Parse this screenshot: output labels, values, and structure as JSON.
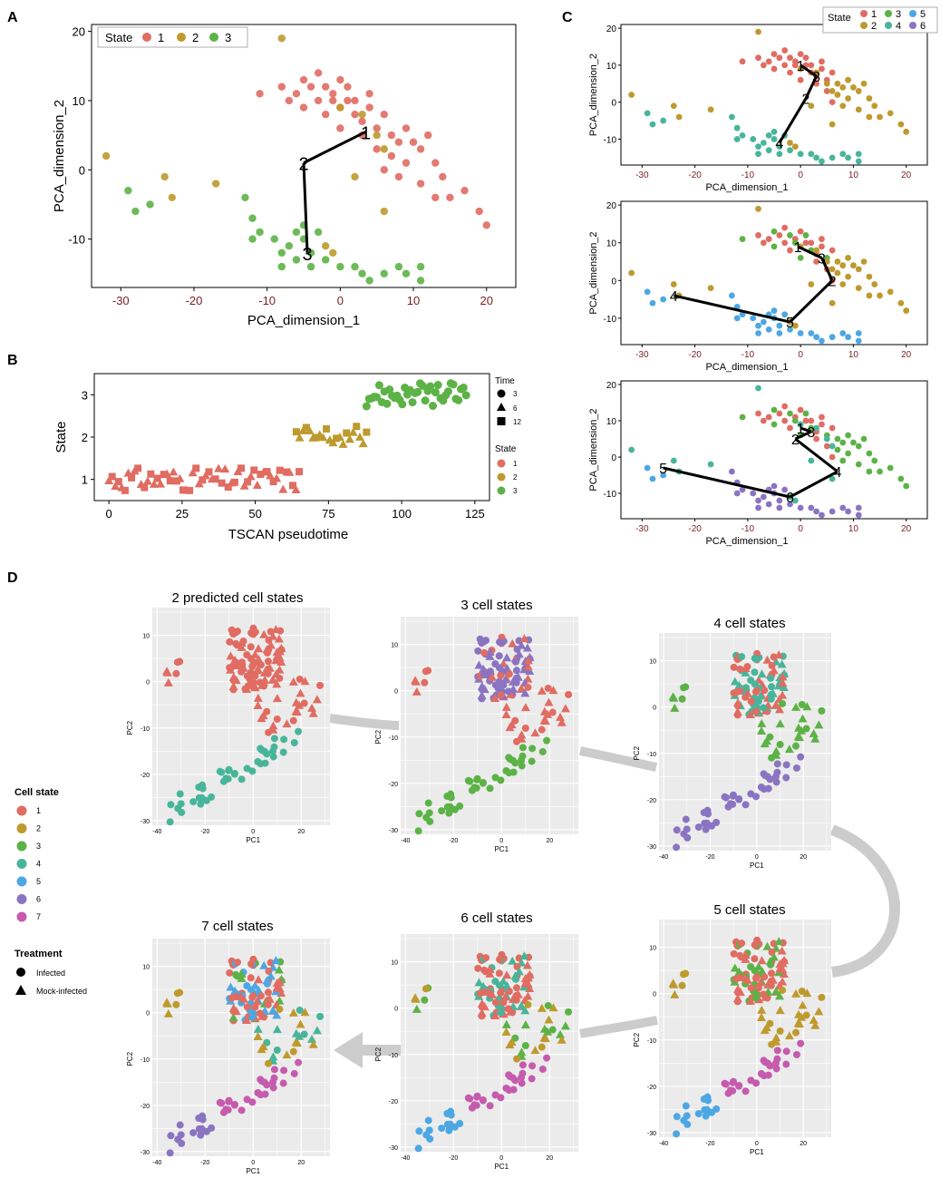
{
  "colors": {
    "s1": "#E06C62",
    "s2": "#BE9A2E",
    "s3": "#5CB246",
    "s4": "#48B59A",
    "s5": "#4CA7E3",
    "s6": "#8A74C2",
    "s7": "#C65BAE",
    "axis_tick": "#7a1f1f",
    "panel_bg": "#ebebeb",
    "arrow": "#cccccc"
  },
  "panels": {
    "A": {
      "letter": "A",
      "xlabel": "PCA_dimension_1",
      "ylabel": "PCA_dimension_2",
      "xticks": [
        "-30",
        "-20",
        "-10",
        "0",
        "10",
        "20"
      ],
      "yticks": [
        "20",
        "10",
        "0",
        "-10"
      ],
      "legend_title": "State",
      "legend_items": [
        "1",
        "2",
        "3"
      ]
    },
    "B": {
      "letter": "B",
      "xlabel": "TSCAN pseudotime",
      "ylabel": "State",
      "xticks": [
        "0",
        "25",
        "50",
        "75",
        "100",
        "125"
      ],
      "yticks": [
        "3",
        "2",
        "1"
      ],
      "time_title": "Time",
      "time_items": [
        "3",
        "6",
        "12"
      ],
      "state_title": "State",
      "state_items": [
        "1",
        "2",
        "3"
      ]
    },
    "C": {
      "letter": "C",
      "xlabel": "PCA_dimension_1",
      "ylabel": "PCA_dimension_2",
      "xticks": [
        "-30",
        "-20",
        "-10",
        "0",
        "10",
        "20"
      ],
      "yticks": [
        "20",
        "10",
        "0",
        "-10"
      ],
      "legend_title": "State",
      "legend_items": [
        "1",
        "2",
        "3",
        "4",
        "5",
        "6"
      ]
    },
    "D": {
      "letter": "D",
      "legend_title": "Cell state",
      "legend_items": [
        "1",
        "2",
        "3",
        "4",
        "5",
        "6",
        "7"
      ],
      "treatment_title": "Treatment",
      "treatment_items": [
        "Infected",
        "Mock-infected"
      ],
      "xlabel": "PC1",
      "ylabel": "PC2",
      "xticks": [
        "-40",
        "-20",
        "0",
        "20"
      ],
      "yticks": [
        "10",
        "0",
        "-10",
        "-20",
        "-30"
      ],
      "subplots": [
        {
          "title": "2 predicted cell states",
          "k": 2
        },
        {
          "title": "3 cell states",
          "k": 3
        },
        {
          "title": "4 cell states",
          "k": 4
        },
        {
          "title": "5 cell states",
          "k": 5
        },
        {
          "title": "6 cell states",
          "k": 6
        },
        {
          "title": "7 cell states",
          "k": 7
        }
      ]
    }
  },
  "chart_data": [
    {
      "panel": "A",
      "type": "scatter",
      "xlim": [
        -34,
        24
      ],
      "ylim": [
        -17,
        21
      ],
      "series": [
        {
          "name": "1",
          "points": [
            [
              -11,
              11
            ],
            [
              -8,
              12
            ],
            [
              -6,
              11
            ],
            [
              -5,
              13
            ],
            [
              -4,
              12
            ],
            [
              -3,
              14
            ],
            [
              -2,
              12
            ],
            [
              -1,
              11
            ],
            [
              0,
              13
            ],
            [
              1,
              12
            ],
            [
              2,
              10
            ],
            [
              -7,
              10
            ],
            [
              -5,
              9
            ],
            [
              -3,
              10
            ],
            [
              0,
              9
            ],
            [
              2,
              8
            ],
            [
              3,
              7
            ],
            [
              4,
              9
            ],
            [
              5,
              6
            ],
            [
              6,
              8
            ],
            [
              7,
              5
            ],
            [
              8,
              4
            ],
            [
              9,
              6
            ],
            [
              10,
              4
            ],
            [
              11,
              3
            ],
            [
              12,
              5
            ],
            [
              13,
              1
            ],
            [
              14,
              -1
            ],
            [
              15,
              -4
            ],
            [
              17,
              -3
            ],
            [
              19,
              -6
            ],
            [
              20,
              -8
            ],
            [
              -2,
              8
            ],
            [
              0,
              6
            ],
            [
              3,
              5
            ],
            [
              5,
              3
            ],
            [
              7,
              2
            ],
            [
              9,
              1
            ],
            [
              6,
              0
            ],
            [
              8,
              -1
            ],
            [
              11,
              -2
            ],
            [
              13,
              -4
            ],
            [
              -1,
              10
            ],
            [
              1,
              10
            ],
            [
              4,
              11
            ]
          ]
        },
        {
          "name": "2",
          "points": [
            [
              -8,
              19
            ],
            [
              -32,
              2
            ],
            [
              -24,
              -1
            ],
            [
              -23,
              -4
            ],
            [
              -17,
              -2
            ],
            [
              0,
              9
            ],
            [
              3,
              8
            ],
            [
              5,
              5
            ],
            [
              6,
              3
            ],
            [
              2,
              -1
            ],
            [
              6,
              -6
            ],
            [
              -2,
              -11
            ],
            [
              -1,
              -12
            ]
          ]
        },
        {
          "name": "3",
          "points": [
            [
              -29,
              -3
            ],
            [
              -28,
              -6
            ],
            [
              -26,
              -5
            ],
            [
              -13,
              -4
            ],
            [
              -12,
              -7
            ],
            [
              -11,
              -9
            ],
            [
              -9,
              -10
            ],
            [
              -8,
              -12
            ],
            [
              -7,
              -11
            ],
            [
              -6,
              -9
            ],
            [
              -5,
              -10
            ],
            [
              -4,
              -12
            ],
            [
              -3,
              -9
            ],
            [
              -2,
              -13
            ],
            [
              -4,
              -14
            ],
            [
              -6,
              -13
            ],
            [
              -8,
              -14
            ],
            [
              2,
              -14
            ],
            [
              3,
              -15
            ],
            [
              4,
              -16
            ],
            [
              6,
              -15
            ],
            [
              8,
              -14
            ],
            [
              9,
              -15
            ],
            [
              11,
              -14
            ],
            [
              11,
              -16
            ],
            [
              -12,
              -10
            ],
            [
              -5,
              -8
            ],
            [
              0,
              -14
            ]
          ]
        }
      ],
      "trajectory": [
        {
          "label": "1",
          "x": 3.5,
          "y": 5.5
        },
        {
          "label": "2",
          "x": -5,
          "y": 1
        },
        {
          "label": "3",
          "x": -4.5,
          "y": -12
        }
      ]
    },
    {
      "panel": "B",
      "type": "scatter",
      "xlim": [
        -5,
        130
      ],
      "ylim": [
        0.5,
        3.5
      ],
      "series": [
        {
          "name": "1",
          "x_range": [
            0,
            65
          ],
          "y": 1,
          "count": 60
        },
        {
          "name": "2",
          "x_range": [
            64,
            88
          ],
          "y": 2,
          "count": 22
        },
        {
          "name": "3",
          "x_range": [
            88,
            122
          ],
          "y": 3,
          "count": 40
        }
      ]
    },
    {
      "panel": "C1",
      "type": "scatter",
      "xlim": [
        -34,
        24
      ],
      "ylim": [
        -17,
        21
      ],
      "trajectory": [
        {
          "label": "1",
          "x": 0,
          "y": 10
        },
        {
          "label": "3",
          "x": 3,
          "y": 7
        },
        {
          "label": "2",
          "x": 1,
          "y": 1
        },
        {
          "label": "4",
          "x": -4,
          "y": -11
        }
      ]
    },
    {
      "panel": "C2",
      "type": "scatter",
      "xlim": [
        -34,
        24
      ],
      "ylim": [
        -17,
        21
      ],
      "trajectory": [
        {
          "label": "1",
          "x": -0.5,
          "y": 9
        },
        {
          "label": "3",
          "x": 4,
          "y": 6
        },
        {
          "label": "2",
          "x": 6,
          "y": 0
        },
        {
          "label": "5",
          "x": -2,
          "y": -11
        },
        {
          "label": "4",
          "x": -24,
          "y": -4
        }
      ]
    },
    {
      "panel": "C3",
      "type": "scatter",
      "xlim": [
        -34,
        24
      ],
      "ylim": [
        -17,
        21
      ],
      "trajectory": [
        {
          "label": "1",
          "x": 0,
          "y": 8
        },
        {
          "label": "3",
          "x": 2,
          "y": 7
        },
        {
          "label": "2",
          "x": -1,
          "y": 5
        },
        {
          "label": "4",
          "x": 7,
          "y": -4
        },
        {
          "label": "6",
          "x": -2,
          "y": -11
        },
        {
          "label": "5",
          "x": -26,
          "y": -3
        }
      ]
    }
  ]
}
